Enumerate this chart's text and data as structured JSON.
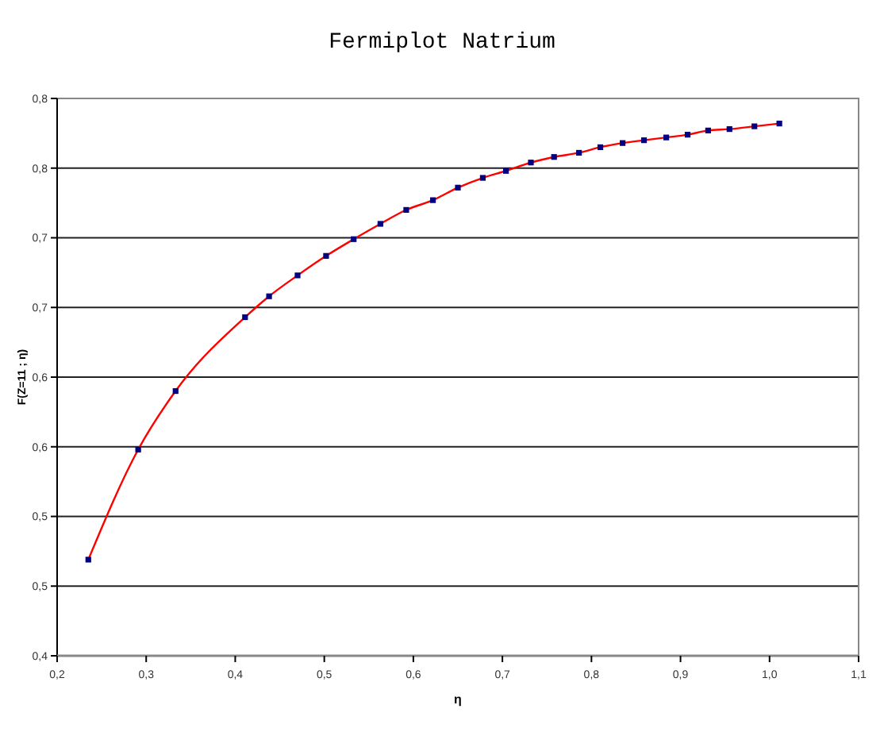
{
  "chart_data": {
    "type": "line",
    "title": "Fermiplot Natrium",
    "xlabel": "η",
    "ylabel": "F(Z=11 ; η)",
    "x": [
      0.235,
      0.291,
      0.333,
      0.411,
      0.438,
      0.47,
      0.502,
      0.533,
      0.563,
      0.592,
      0.622,
      0.65,
      0.678,
      0.704,
      0.732,
      0.758,
      0.786,
      0.81,
      0.835,
      0.859,
      0.884,
      0.908,
      0.931,
      0.955,
      0.983,
      1.011
    ],
    "series": [
      {
        "color": "#ff0000",
        "values": [
          0.469,
          0.548,
          0.59,
          0.643,
          0.658,
          0.673,
          0.687,
          0.699,
          0.71,
          0.72,
          0.727,
          0.736,
          0.743,
          0.748,
          0.754,
          0.758,
          0.761,
          0.765,
          0.768,
          0.77,
          0.772,
          0.774,
          0.777,
          0.778,
          0.78,
          0.782
        ]
      }
    ],
    "marker": "square",
    "xlim": [
      0.2,
      1.1
    ],
    "xticks": [
      {
        "value": 0.2,
        "label": "0,2"
      },
      {
        "value": 0.3,
        "label": "0,3"
      },
      {
        "value": 0.4,
        "label": "0,4"
      },
      {
        "value": 0.5,
        "label": "0,5"
      },
      {
        "value": 0.6,
        "label": "0,6"
      },
      {
        "value": 0.7,
        "label": "0,7"
      },
      {
        "value": 0.8,
        "label": "0,8"
      },
      {
        "value": 0.9,
        "label": "0,9"
      },
      {
        "value": 1.0,
        "label": "1,0"
      },
      {
        "value": 1.1,
        "label": "1,1"
      }
    ],
    "ylim": [
      0.4,
      0.8
    ],
    "yticks": [
      {
        "value": 0.4,
        "label": "0,4"
      },
      {
        "value": 0.45,
        "label": "0,5"
      },
      {
        "value": 0.5,
        "label": "0,5"
      },
      {
        "value": 0.55,
        "label": "0,6"
      },
      {
        "value": 0.6,
        "label": "0,6"
      },
      {
        "value": 0.65,
        "label": "0,7"
      },
      {
        "value": 0.7,
        "label": "0,7"
      },
      {
        "value": 0.75,
        "label": "0,8"
      },
      {
        "value": 0.8,
        "label": "0,8"
      }
    ],
    "grid": "y"
  }
}
